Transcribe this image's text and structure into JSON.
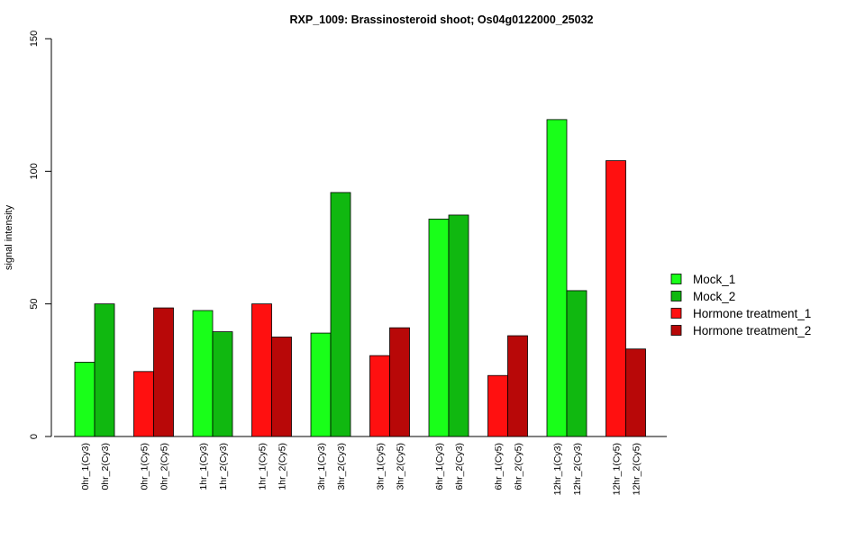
{
  "chart_data": {
    "type": "bar",
    "title": "RXP_1009: Brassinosteroid shoot; Os04g0122000_25032",
    "xlabel": "",
    "ylabel": "signal intensity",
    "ylim": [
      0,
      150
    ],
    "yticks": [
      0,
      50,
      100,
      150
    ],
    "grid": false,
    "legend_position": "right",
    "series": [
      {
        "name": "Mock_1",
        "color": "#19ff19"
      },
      {
        "name": "Mock_2",
        "color": "#10b810"
      },
      {
        "name": "Hormone treatment_1",
        "color": "#ff1010"
      },
      {
        "name": "Hormone treatment_2",
        "color": "#b80808"
      }
    ],
    "groups": [
      {
        "bars": [
          {
            "label": "0hr_1(Cy3)",
            "series": 0,
            "value": 28
          },
          {
            "label": "0hr_2(Cy3)",
            "series": 1,
            "value": 50
          }
        ]
      },
      {
        "bars": [
          {
            "label": "0hr_1(Cy5)",
            "series": 2,
            "value": 24.5
          },
          {
            "label": "0hr_2(Cy5)",
            "series": 3,
            "value": 48.5
          }
        ]
      },
      {
        "bars": [
          {
            "label": "1hr_1(Cy3)",
            "series": 0,
            "value": 47.5
          },
          {
            "label": "1hr_2(Cy3)",
            "series": 1,
            "value": 39.5
          }
        ]
      },
      {
        "bars": [
          {
            "label": "1hr_1(Cy5)",
            "series": 2,
            "value": 50
          },
          {
            "label": "1hr_2(Cy5)",
            "series": 3,
            "value": 37.5
          }
        ]
      },
      {
        "bars": [
          {
            "label": "3hr_1(Cy3)",
            "series": 0,
            "value": 39
          },
          {
            "label": "3hr_2(Cy3)",
            "series": 1,
            "value": 92
          }
        ]
      },
      {
        "bars": [
          {
            "label": "3hr_1(Cy5)",
            "series": 2,
            "value": 30.5
          },
          {
            "label": "3hr_2(Cy5)",
            "series": 3,
            "value": 41
          }
        ]
      },
      {
        "bars": [
          {
            "label": "6hr_1(Cy3)",
            "series": 0,
            "value": 82
          },
          {
            "label": "6hr_2(Cy3)",
            "series": 1,
            "value": 83.5
          }
        ]
      },
      {
        "bars": [
          {
            "label": "6hr_1(Cy5)",
            "series": 2,
            "value": 23
          },
          {
            "label": "6hr_2(Cy5)",
            "series": 3,
            "value": 38
          }
        ]
      },
      {
        "bars": [
          {
            "label": "12hr_1(Cy3)",
            "series": 0,
            "value": 119.5
          },
          {
            "label": "12hr_2(Cy3)",
            "series": 1,
            "value": 55
          }
        ]
      },
      {
        "bars": [
          {
            "label": "12hr_1(Cy5)",
            "series": 2,
            "value": 104
          },
          {
            "label": "12hr_2(Cy5)",
            "series": 3,
            "value": 33
          }
        ]
      }
    ]
  }
}
